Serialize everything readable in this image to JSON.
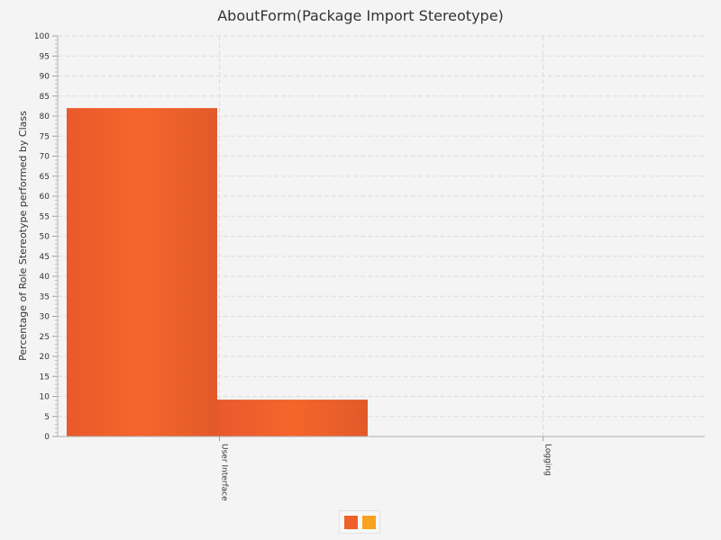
{
  "chart_data": {
    "type": "bar",
    "title": "AboutForm(Package Import Stereotype)",
    "xlabel": "",
    "ylabel": "Percentage of Role Stereotype performed by Class",
    "categories": [
      "User Interface",
      "Logging"
    ],
    "series": [
      {
        "color": "#f0602a",
        "values": [
          82,
          0
        ]
      },
      {
        "color": "#f8a31c",
        "values": [
          9.2,
          0
        ]
      }
    ],
    "ylim": [
      0,
      100
    ],
    "ytick_step": 5,
    "grid": true,
    "legend_position": "bottom-center"
  }
}
